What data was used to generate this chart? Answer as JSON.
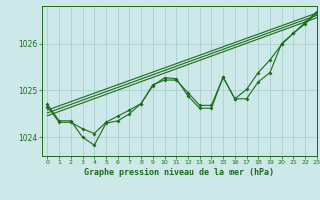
{
  "title": "Graphe pression niveau de la mer (hPa)",
  "bg_color": "#cce8e8",
  "grid_color": "#aacfcf",
  "line_color": "#1a6b1a",
  "xlim": [
    -0.5,
    23
  ],
  "ylim": [
    1023.6,
    1026.8
  ],
  "yticks": [
    1024,
    1025,
    1026
  ],
  "xticks": [
    0,
    1,
    2,
    3,
    4,
    5,
    6,
    7,
    8,
    9,
    10,
    11,
    12,
    13,
    14,
    15,
    16,
    17,
    18,
    19,
    20,
    21,
    22,
    23
  ],
  "series1": [
    1024.7,
    1024.35,
    1024.35,
    1024.0,
    1023.83,
    1024.3,
    1024.35,
    1024.5,
    1024.72,
    1025.1,
    1025.27,
    1025.25,
    1024.88,
    1024.62,
    1024.62,
    1025.28,
    1024.82,
    1024.82,
    1025.18,
    1025.38,
    1026.0,
    1026.22,
    1026.45,
    1026.68
  ],
  "series2": [
    1024.65,
    1024.32,
    1024.32,
    1024.18,
    1024.08,
    1024.32,
    1024.45,
    1024.58,
    1024.72,
    1025.12,
    1025.22,
    1025.22,
    1024.95,
    1024.68,
    1024.68,
    1025.28,
    1024.82,
    1025.02,
    1025.38,
    1025.65,
    1025.98,
    1026.22,
    1026.42,
    1026.65
  ],
  "trend1_x": [
    0,
    23
  ],
  "trend1_y": [
    1024.58,
    1026.65
  ],
  "trend2_x": [
    0,
    23
  ],
  "trend2_y": [
    1024.52,
    1026.6
  ],
  "trend3_x": [
    0,
    23
  ],
  "trend3_y": [
    1024.46,
    1026.55
  ]
}
